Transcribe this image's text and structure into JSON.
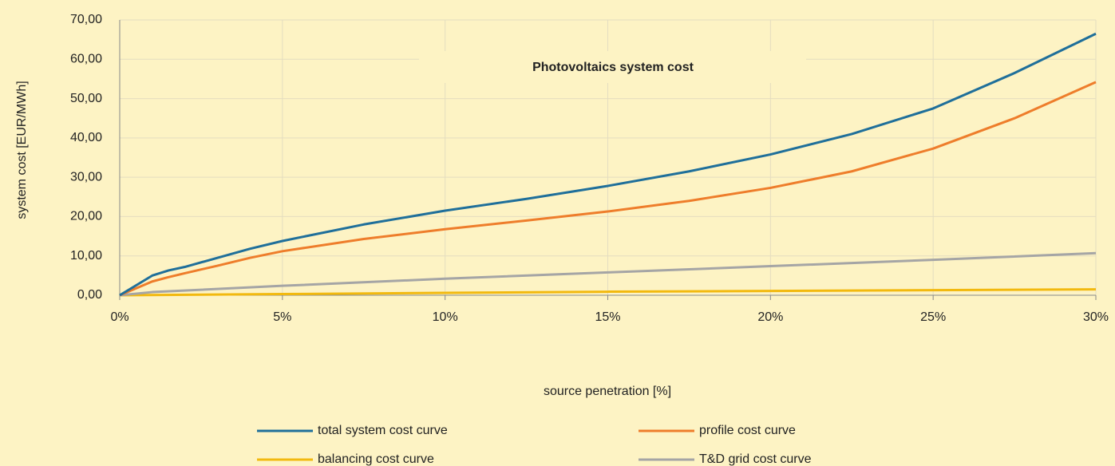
{
  "chart_data": {
    "type": "line",
    "title": "Photovoltaics system cost",
    "x_label": "source penetration [%]",
    "y_label": "system cost [EUR/MWh]",
    "xlim": [
      0,
      30
    ],
    "xticks": [
      {
        "value": 0,
        "label": "0%"
      },
      {
        "value": 5,
        "label": "5%"
      },
      {
        "value": 10,
        "label": "10%"
      },
      {
        "value": 15,
        "label": "15%"
      },
      {
        "value": 20,
        "label": "20%"
      },
      {
        "value": 25,
        "label": "25%"
      },
      {
        "value": 30,
        "label": "30%"
      }
    ],
    "ylim": [
      0,
      70
    ],
    "yticks": [
      {
        "value": 0,
        "label": "0,00"
      },
      {
        "value": 10,
        "label": "10,00"
      },
      {
        "value": 20,
        "label": "20,00"
      },
      {
        "value": 30,
        "label": "30,00"
      },
      {
        "value": 40,
        "label": "40,00"
      },
      {
        "value": 50,
        "label": "50,00"
      },
      {
        "value": 60,
        "label": "60,00"
      },
      {
        "value": 70,
        "label": "70,00"
      }
    ],
    "grid": true,
    "series": [
      {
        "name": "total system cost curve",
        "color": "#1f6f9a",
        "x": [
          0,
          1,
          1.5,
          2,
          3,
          4,
          5,
          7.5,
          10,
          12.5,
          15,
          17.5,
          20,
          22.5,
          25,
          27.5,
          30
        ],
        "values": [
          0,
          5,
          6.3,
          7.2,
          9.5,
          11.8,
          13.8,
          18,
          21.5,
          24.5,
          27.8,
          31.5,
          35.8,
          41,
          47.5,
          56.5,
          66.5
        ]
      },
      {
        "name": "profile cost curve",
        "color": "#ee7d2b",
        "x": [
          0,
          1,
          1.5,
          2,
          3,
          4,
          5,
          7.5,
          10,
          12.5,
          15,
          17.5,
          20,
          22.5,
          25,
          27.5,
          30
        ],
        "values": [
          0,
          3.5,
          4.6,
          5.6,
          7.5,
          9.5,
          11.2,
          14.3,
          16.8,
          19,
          21.3,
          24,
          27.3,
          31.5,
          37.3,
          45,
          54.2
        ]
      },
      {
        "name": "balancing cost curve",
        "color": "#f2b90f",
        "x": [
          0,
          5,
          10,
          15,
          20,
          25,
          30
        ],
        "values": [
          0,
          0.3,
          0.6,
          0.9,
          1.1,
          1.3,
          1.5
        ]
      },
      {
        "name": "T&D grid cost curve",
        "color": "#a5a5a5",
        "x": [
          0,
          1,
          5,
          10,
          15,
          20,
          25,
          30
        ],
        "values": [
          0,
          0.8,
          2.4,
          4.2,
          5.8,
          7.4,
          9.0,
          10.7
        ]
      }
    ]
  }
}
